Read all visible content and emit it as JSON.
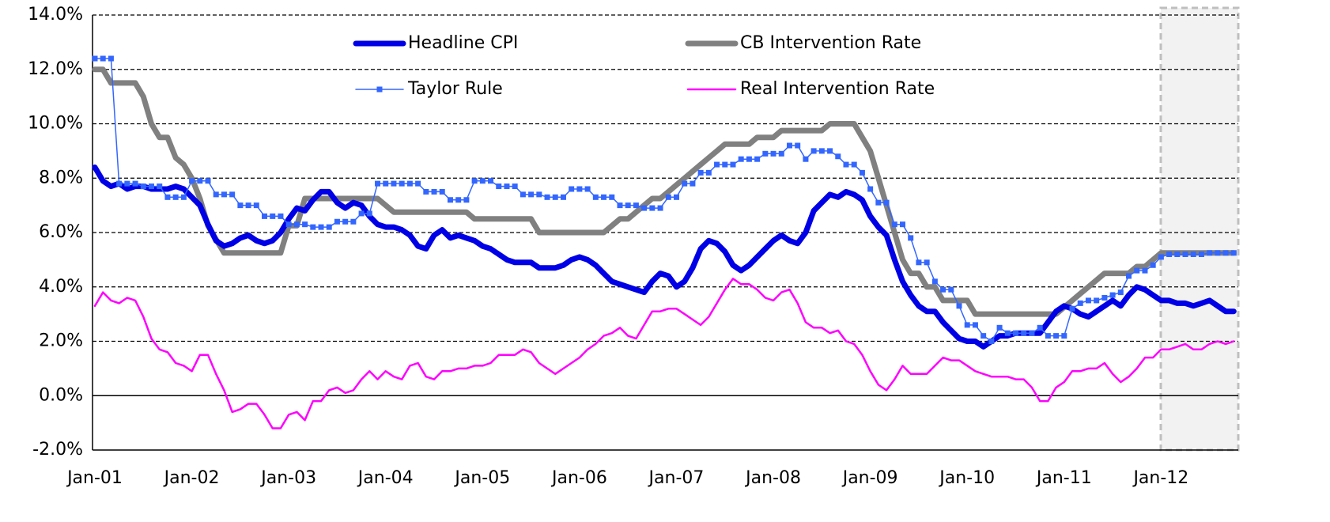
{
  "chart_data": {
    "type": "line",
    "categories": [
      "Jan-01",
      null,
      null,
      null,
      null,
      null,
      null,
      null,
      null,
      null,
      null,
      null,
      "Jan-02",
      null,
      null,
      null,
      null,
      null,
      null,
      null,
      null,
      null,
      null,
      null,
      "Jan-03",
      null,
      null,
      null,
      null,
      null,
      null,
      null,
      null,
      null,
      null,
      null,
      "Jan-04",
      null,
      null,
      null,
      null,
      null,
      null,
      null,
      null,
      null,
      null,
      null,
      "Jan-05",
      null,
      null,
      null,
      null,
      null,
      null,
      null,
      null,
      null,
      null,
      null,
      "Jan-06",
      null,
      null,
      null,
      null,
      null,
      null,
      null,
      null,
      null,
      null,
      null,
      "Jan-07",
      null,
      null,
      null,
      null,
      null,
      null,
      null,
      null,
      null,
      null,
      null,
      "Jan-08",
      null,
      null,
      null,
      null,
      null,
      null,
      null,
      null,
      null,
      null,
      null,
      "Jan-09",
      null,
      null,
      null,
      null,
      null,
      null,
      null,
      null,
      null,
      null,
      null,
      "Jan-10",
      null,
      null,
      null,
      null,
      null,
      null,
      null,
      null,
      null,
      null,
      null,
      "Jan-11",
      null,
      null,
      null,
      null,
      null,
      null,
      null,
      null,
      null,
      null,
      null,
      "Jan-12",
      null,
      null,
      null,
      null,
      null,
      null,
      null,
      null,
      null
    ],
    "series": [
      {
        "name": "Headline CPI",
        "color": "#0000e6",
        "values": [
          8.4,
          7.9,
          7.7,
          7.8,
          7.6,
          7.7,
          7.7,
          7.6,
          7.6,
          7.6,
          7.7,
          7.6,
          7.3,
          7.0,
          6.3,
          5.7,
          5.5,
          5.6,
          5.8,
          5.9,
          5.7,
          5.6,
          5.7,
          6.0,
          6.5,
          6.9,
          6.8,
          7.2,
          7.5,
          7.5,
          7.1,
          6.9,
          7.1,
          7.0,
          6.6,
          6.3,
          6.2,
          6.2,
          6.1,
          5.9,
          5.5,
          5.4,
          5.9,
          6.1,
          5.8,
          5.9,
          5.8,
          5.7,
          5.5,
          5.4,
          5.2,
          5.0,
          4.9,
          4.9,
          4.9,
          4.7,
          4.7,
          4.7,
          4.8,
          5.0,
          5.1,
          5.0,
          4.8,
          4.5,
          4.2,
          4.1,
          4.0,
          3.9,
          3.8,
          4.2,
          4.5,
          4.4,
          4.0,
          4.2,
          4.7,
          5.4,
          5.7,
          5.6,
          5.3,
          4.8,
          4.6,
          4.8,
          5.1,
          5.4,
          5.7,
          5.9,
          5.7,
          5.6,
          6.0,
          6.8,
          7.1,
          7.4,
          7.3,
          7.5,
          7.4,
          7.2,
          6.6,
          6.2,
          5.9,
          5.0,
          4.2,
          3.7,
          3.3,
          3.1,
          3.1,
          2.7,
          2.4,
          2.1,
          2.0,
          2.0,
          1.8,
          2.0,
          2.2,
          2.2,
          2.3,
          2.3,
          2.3,
          2.3,
          2.7,
          3.1,
          3.3,
          3.2,
          3.0,
          2.9,
          3.1,
          3.3,
          3.5,
          3.3,
          3.7,
          4.0,
          3.9,
          3.7,
          3.5,
          3.5,
          3.4,
          3.4,
          3.3,
          3.4,
          3.5,
          3.3,
          3.1,
          3.1
        ]
      },
      {
        "name": "CB Intervention Rate",
        "color": "#808080",
        "values": [
          12.0,
          12.0,
          11.5,
          11.5,
          11.5,
          11.5,
          11.0,
          10.0,
          9.5,
          9.5,
          8.75,
          8.5,
          8.0,
          7.25,
          6.25,
          5.75,
          5.25,
          5.25,
          5.25,
          5.25,
          5.25,
          5.25,
          5.25,
          5.25,
          6.25,
          6.25,
          7.25,
          7.25,
          7.25,
          7.25,
          7.25,
          7.25,
          7.25,
          7.25,
          7.25,
          7.25,
          7.0,
          6.75,
          6.75,
          6.75,
          6.75,
          6.75,
          6.75,
          6.75,
          6.75,
          6.75,
          6.75,
          6.5,
          6.5,
          6.5,
          6.5,
          6.5,
          6.5,
          6.5,
          6.5,
          6.0,
          6.0,
          6.0,
          6.0,
          6.0,
          6.0,
          6.0,
          6.0,
          6.0,
          6.25,
          6.5,
          6.5,
          6.75,
          7.0,
          7.25,
          7.25,
          7.5,
          7.75,
          8.0,
          8.25,
          8.5,
          8.75,
          9.0,
          9.25,
          9.25,
          9.25,
          9.25,
          9.5,
          9.5,
          9.5,
          9.75,
          9.75,
          9.75,
          9.75,
          9.75,
          9.75,
          10.0,
          10.0,
          10.0,
          10.0,
          9.5,
          9.0,
          8.0,
          7.0,
          6.0,
          5.0,
          4.5,
          4.5,
          4.0,
          4.0,
          3.5,
          3.5,
          3.5,
          3.5,
          3.0,
          3.0,
          3.0,
          3.0,
          3.0,
          3.0,
          3.0,
          3.0,
          3.0,
          3.0,
          3.0,
          3.25,
          3.5,
          3.75,
          4.0,
          4.25,
          4.5,
          4.5,
          4.5,
          4.5,
          4.75,
          4.75,
          5.0,
          5.25,
          5.25,
          5.25,
          5.25,
          5.25,
          5.25,
          5.25,
          5.25,
          5.25,
          5.25
        ]
      },
      {
        "name": "Taylor Rule",
        "color": "#3366ff",
        "values": [
          12.4,
          12.4,
          12.4,
          7.8,
          7.8,
          7.8,
          7.7,
          7.7,
          7.7,
          7.3,
          7.3,
          7.3,
          7.9,
          7.9,
          7.9,
          7.4,
          7.4,
          7.4,
          7.0,
          7.0,
          7.0,
          6.6,
          6.6,
          6.6,
          6.3,
          6.3,
          6.3,
          6.2,
          6.2,
          6.2,
          6.4,
          6.4,
          6.4,
          6.7,
          6.7,
          7.8,
          7.8,
          7.8,
          7.8,
          7.8,
          7.8,
          7.5,
          7.5,
          7.5,
          7.2,
          7.2,
          7.2,
          7.9,
          7.9,
          7.9,
          7.7,
          7.7,
          7.7,
          7.4,
          7.4,
          7.4,
          7.3,
          7.3,
          7.3,
          7.6,
          7.6,
          7.6,
          7.3,
          7.3,
          7.3,
          7.0,
          7.0,
          7.0,
          6.9,
          6.9,
          6.9,
          7.3,
          7.3,
          7.8,
          7.8,
          8.2,
          8.2,
          8.5,
          8.5,
          8.5,
          8.7,
          8.7,
          8.7,
          8.9,
          8.9,
          8.9,
          9.2,
          9.2,
          8.7,
          9.0,
          9.0,
          9.0,
          8.8,
          8.5,
          8.5,
          8.2,
          7.6,
          7.1,
          7.1,
          6.3,
          6.3,
          5.8,
          4.9,
          4.9,
          4.2,
          3.9,
          3.9,
          3.3,
          2.6,
          2.6,
          2.2,
          2.0,
          2.5,
          2.3,
          2.3,
          2.3,
          2.3,
          2.5,
          2.2,
          2.2,
          2.2,
          3.2,
          3.4,
          3.5,
          3.5,
          3.6,
          3.7,
          3.8,
          4.4,
          4.6,
          4.6,
          4.8,
          5.1,
          5.2,
          5.2,
          5.2,
          5.2,
          5.2,
          5.25,
          5.25,
          5.25,
          5.25
        ]
      },
      {
        "name": "Real Intervention Rate",
        "color": "#ff00ff",
        "values": [
          3.3,
          3.8,
          3.5,
          3.4,
          3.6,
          3.5,
          2.9,
          2.1,
          1.7,
          1.6,
          1.2,
          1.1,
          0.9,
          1.5,
          1.5,
          0.8,
          0.2,
          -0.6,
          -0.5,
          -0.3,
          -0.3,
          -0.7,
          -1.2,
          -1.2,
          -0.7,
          -0.6,
          -0.9,
          -0.2,
          -0.2,
          0.2,
          0.3,
          0.1,
          0.2,
          0.6,
          0.9,
          0.6,
          0.9,
          0.7,
          0.6,
          1.1,
          1.2,
          0.7,
          0.6,
          0.9,
          0.9,
          1.0,
          1.0,
          1.1,
          1.1,
          1.2,
          1.5,
          1.5,
          1.5,
          1.7,
          1.6,
          1.2,
          1.0,
          0.8,
          1.0,
          1.2,
          1.4,
          1.7,
          1.9,
          2.2,
          2.3,
          2.5,
          2.2,
          2.1,
          2.6,
          3.1,
          3.1,
          3.2,
          3.2,
          3.0,
          2.8,
          2.6,
          2.9,
          3.4,
          3.9,
          4.3,
          4.1,
          4.1,
          3.9,
          3.6,
          3.5,
          3.8,
          3.9,
          3.4,
          2.7,
          2.5,
          2.5,
          2.3,
          2.4,
          2.0,
          1.9,
          1.5,
          0.9,
          0.4,
          0.2,
          0.6,
          1.1,
          0.8,
          0.8,
          0.8,
          1.1,
          1.4,
          1.3,
          1.3,
          1.1,
          0.9,
          0.8,
          0.7,
          0.7,
          0.7,
          0.6,
          0.6,
          0.3,
          -0.2,
          -0.2,
          0.3,
          0.5,
          0.9,
          0.9,
          1.0,
          1.0,
          1.2,
          0.8,
          0.5,
          0.7,
          1.0,
          1.4,
          1.4,
          1.7,
          1.7,
          1.8,
          1.9,
          1.7,
          1.7,
          1.9,
          2.0,
          1.9,
          2.0
        ]
      }
    ],
    "ylim": [
      -2,
      14
    ],
    "yticks": [
      {
        "value": -2,
        "label": "-2.0%"
      },
      {
        "value": 0,
        "label": "0.0%"
      },
      {
        "value": 2,
        "label": "2.0%"
      },
      {
        "value": 4,
        "label": "4.0%"
      },
      {
        "value": 6,
        "label": "6.0%"
      },
      {
        "value": 8,
        "label": "8.0%"
      },
      {
        "value": 10,
        "label": "10.0%"
      },
      {
        "value": 12,
        "label": "12.0%"
      },
      {
        "value": 14,
        "label": "14.0%"
      }
    ],
    "grid": true
  }
}
